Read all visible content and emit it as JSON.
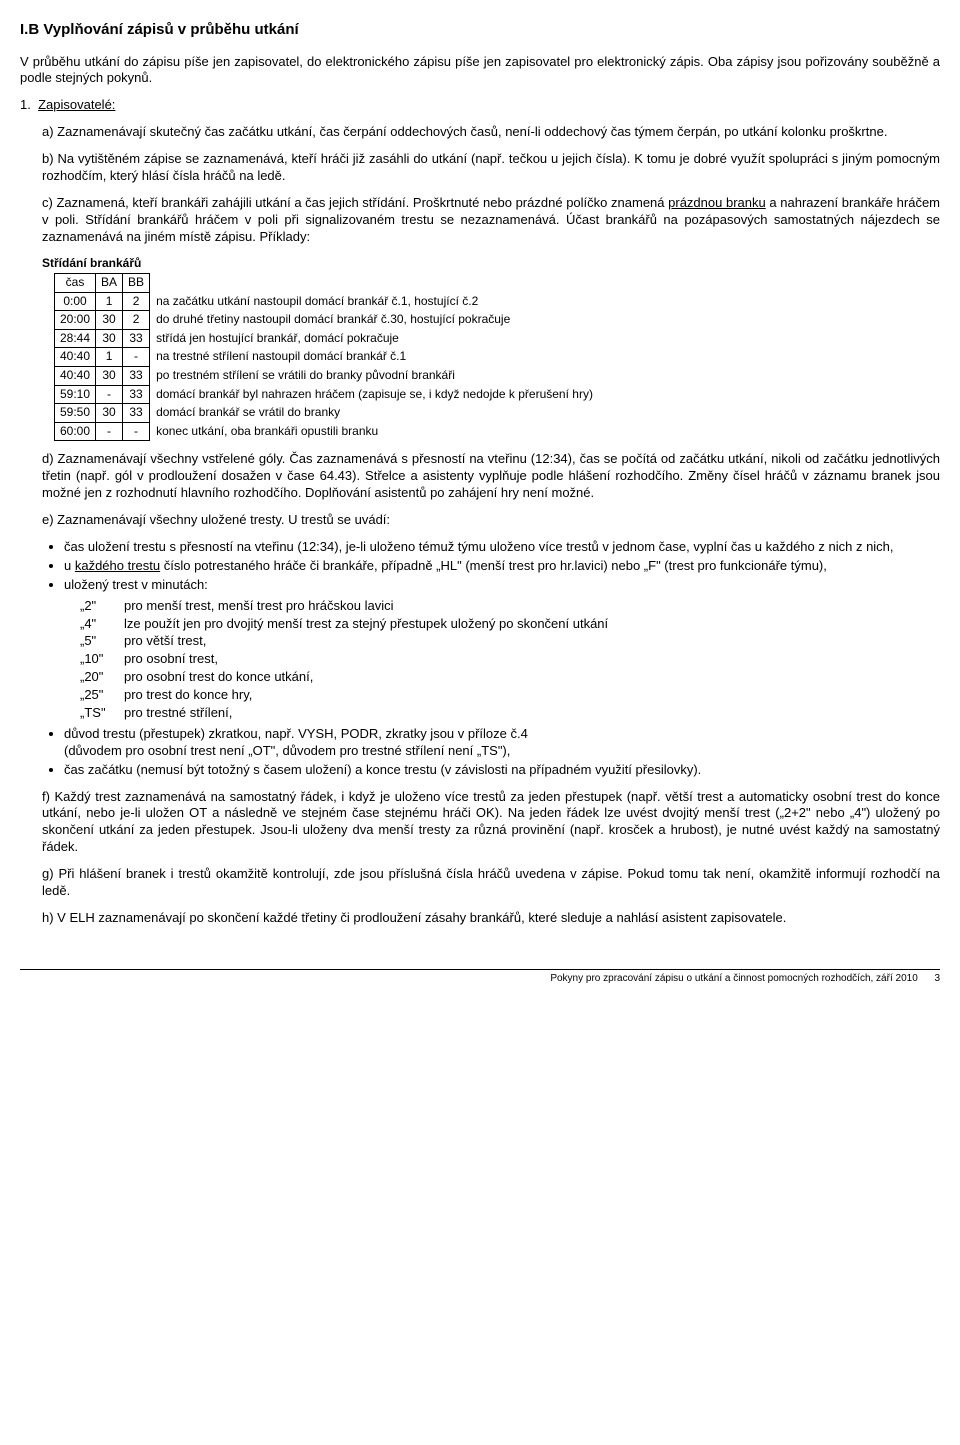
{
  "title": "I.B Vyplňování zápisů v průběhu utkání",
  "intro": "V průběhu utkání do zápisu píše jen zapisovatel, do elektronického zápisu píše jen zapisovatel pro elektronický zápis. Oba zápisy jsou pořizovány souběžně a podle stejných pokynů.",
  "num1_label": "1.",
  "num1_text": "Zapisovatelé:",
  "a_text": "a) Zaznamenávají skutečný čas začátku utkání, čas čerpání oddechových časů, není-li oddechový čas týmem čerpán, po utkání kolonku proškrtne.",
  "b_text": "b) Na vytištěném zápise se zaznamenává, kteří hráči již zasáhli do utkání (např. tečkou u jejich čísla). K tomu je dobré využít spolupráci s jiným pomocným rozhodčím, který hlásí čísla hráčů na ledě.",
  "c_text_1": "c) Zaznamená, kteří brankáři zahájili utkání a čas jejich střídání. Proškrtnuté nebo prázdné políčko znamená ",
  "c_under": "prázdnou branku",
  "c_text_2": " a nahrazení brankáře hráčem v poli. Střídání brankářů hráčem v poli při signalizovaném trestu se nezaznamenává. Účast brankářů na pozápasových samostatných nájezdech se zaznamenává na jiném místě zápisu. Příklady:",
  "tbl_header": "Střídání brankářů",
  "tbl_cols": [
    "čas",
    "BA",
    "BB"
  ],
  "tbl_rows": [
    {
      "c": [
        "0:00",
        "1",
        "2"
      ],
      "note": "na začátku utkání nastoupil domácí brankář č.1, hostující č.2"
    },
    {
      "c": [
        "20:00",
        "30",
        "2"
      ],
      "note": "do druhé třetiny nastoupil domácí brankář č.30, hostující pokračuje"
    },
    {
      "c": [
        "28:44",
        "30",
        "33"
      ],
      "note": "střídá jen hostující brankář, domácí pokračuje"
    },
    {
      "c": [
        "40:40",
        "1",
        "-"
      ],
      "note": "na trestné střílení nastoupil domácí brankář č.1"
    },
    {
      "c": [
        "40:40",
        "30",
        "33"
      ],
      "note": "po trestném střílení se vrátili do branky původní brankáři"
    },
    {
      "c": [
        "59:10",
        "-",
        "33"
      ],
      "note": "domácí brankář byl nahrazen hráčem (zapisuje se, i když nedojde k přerušení hry)"
    },
    {
      "c": [
        "59:50",
        "30",
        "33"
      ],
      "note": "domácí brankář se vrátil do branky"
    },
    {
      "c": [
        "60:00",
        "-",
        "-"
      ],
      "note": "konec utkání, oba brankáři opustili branku"
    }
  ],
  "d_text": "d) Zaznamenávají všechny vstřelené góly. Čas zaznamenává s přesností na vteřinu (12:34), čas se počítá od začátku utkání, nikoli od začátku jednotlivých třetin (např. gól v prodloužení dosažen v čase 64.43). Střelce a asistenty vyplňuje podle hlášení rozhodčího. Změny čísel hráčů v záznamu branek jsou možné jen z rozhodnutí hlavního rozhodčího. Doplňování asistentů po zahájení hry není možné.",
  "e_text": "e) Zaznamenávají všechny uložené tresty. U trestů se uvádí:",
  "e_bul1": "čas uložení trestu s přesností na vteřinu (12:34), je-li uloženo témuž týmu uloženo více trestů v jednom čase, vyplní čas u každého z nich z nich,",
  "e_bul2_1": "u ",
  "e_bul2_u": "každého trestu",
  "e_bul2_2": " číslo potrestaného hráče či brankáře, případně „HL\" (menší trest pro hr.lavici) nebo „F\" (trest pro funkcionáře týmu),",
  "e_bul3": "uložený trest v minutách:",
  "penalties": [
    {
      "k": "„2\"",
      "v": "pro menší trest, menší trest pro hráčskou lavici"
    },
    {
      "k": "„4\"",
      "v": "lze použít jen pro dvojitý menší trest za stejný přestupek uložený po skončení utkání"
    },
    {
      "k": "„5\"",
      "v": "pro větší trest,"
    },
    {
      "k": "„10\"",
      "v": "pro osobní trest,"
    },
    {
      "k": "„20\"",
      "v": "pro osobní trest do konce utkání,"
    },
    {
      "k": "„25\"",
      "v": "pro trest do konce hry,"
    },
    {
      "k": "„TS\"",
      "v": "pro trestné střílení,"
    }
  ],
  "e_bul4": "důvod trestu (přestupek) zkratkou, např. VYSH, PODR, zkratky jsou v příloze č.4",
  "e_bul4b": "(důvodem pro osobní trest není „OT\", důvodem pro trestné střílení není „TS\"),",
  "e_bul5": "čas začátku (nemusí být totožný s časem uložení) a konce trestu (v závislosti na případném využití přesilovky).",
  "f_text": "f) Každý trest zaznamenává na samostatný řádek, i když je uloženo více trestů za jeden přestupek (např. větší trest a automaticky osobní trest do konce utkání, nebo je-li uložen OT a následně ve stejném čase stejnému hráči OK). Na jeden řádek lze uvést dvojitý menší trest („2+2\" nebo „4\") uložený po skončení utkání za jeden přestupek. Jsou-li uloženy dva menší tresty za různá provinění (např. krosček a hrubost), je nutné uvést každý na samostatný řádek.",
  "g_text": "g) Při hlášení branek i trestů okamžitě kontrolují, zde jsou příslušná čísla hráčů uvedena v zápise. Pokud tomu tak není, okamžitě informují rozhodčí na ledě.",
  "h_text": "h) V ELH zaznamenávají po skončení každé třetiny či prodloužení zásahy brankářů, které sleduje a nahlásí asistent zapisovatele.",
  "footer_text": "Pokyny pro zpracování zápisu o utkání a činnost pomocných rozhodčích, září 2010",
  "footer_page": "3"
}
